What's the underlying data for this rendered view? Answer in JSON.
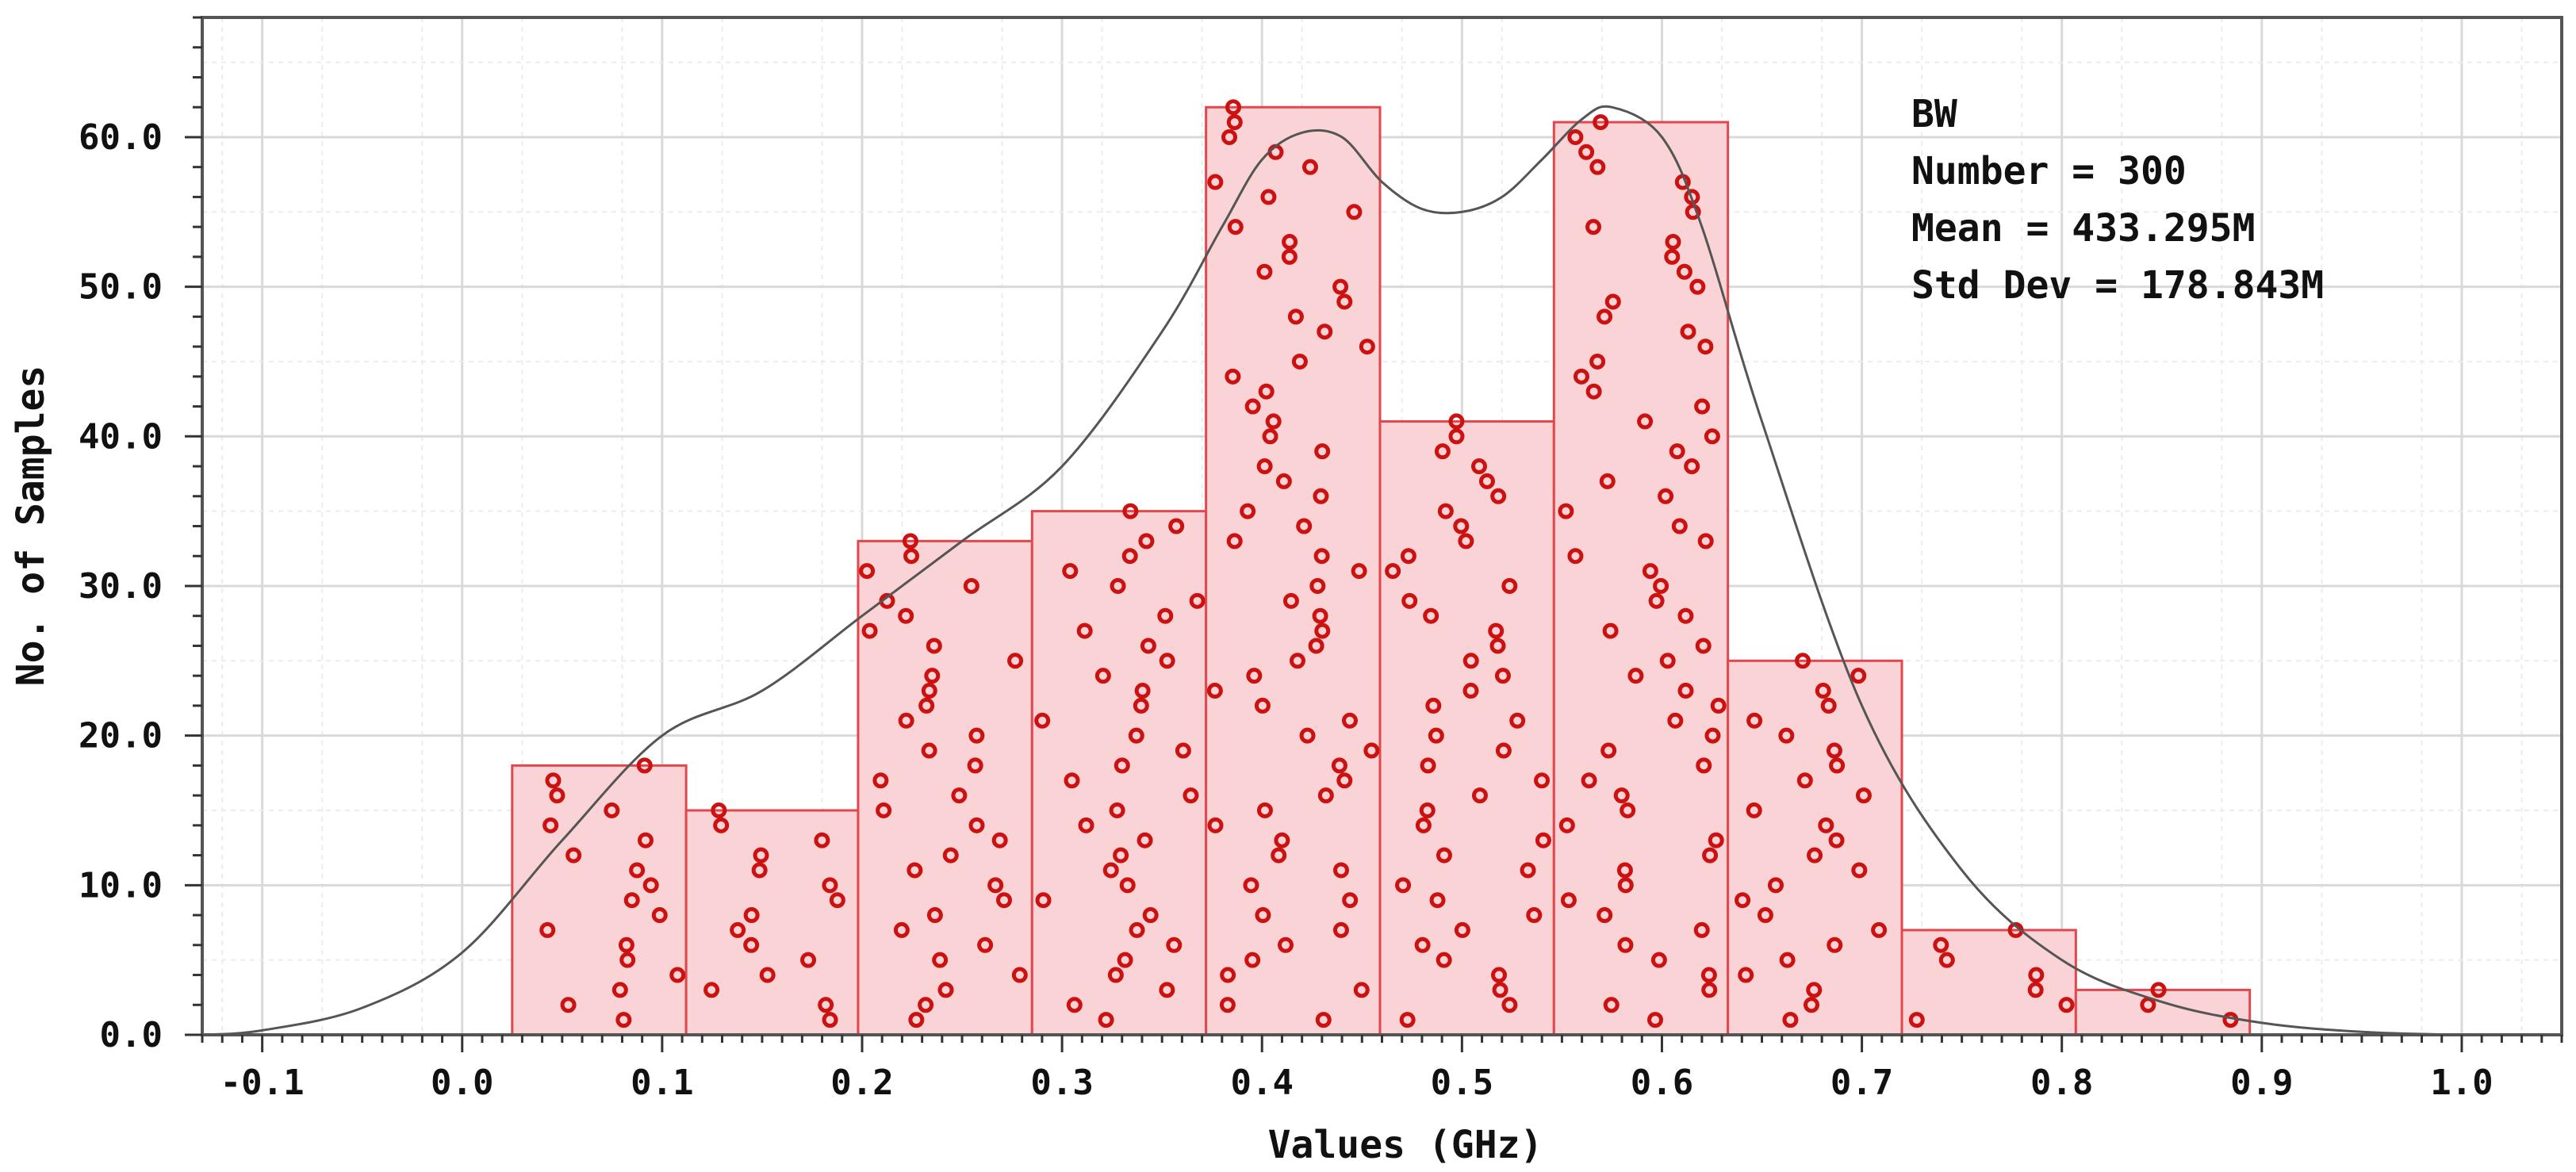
{
  "chart_data": {
    "type": "bar",
    "subtype": "histogram",
    "title": "",
    "xlabel": "Values (GHz)",
    "ylabel": "No. of Samples",
    "xlim": [
      -0.13,
      1.05
    ],
    "ylim": [
      0,
      68
    ],
    "grid": true,
    "x_ticks": [
      -0.1,
      0.0,
      0.1,
      0.2,
      0.3,
      0.4,
      0.5,
      0.6,
      0.7,
      0.8,
      0.9,
      1.0
    ],
    "x_tick_labels": [
      "-0.1",
      "0.0",
      "0.1",
      "0.2",
      "0.3",
      "0.4",
      "0.5",
      "0.6",
      "0.7",
      "0.8",
      "0.9",
      "1.0"
    ],
    "y_ticks": [
      0,
      10,
      20,
      30,
      40,
      50,
      60
    ],
    "y_tick_labels": [
      "0.0",
      "10.0",
      "20.0",
      "30.0",
      "40.0",
      "50.0",
      "60.0"
    ],
    "bins": [
      {
        "x0": 0.025,
        "x1": 0.112,
        "count": 18
      },
      {
        "x0": 0.112,
        "x1": 0.198,
        "count": 15
      },
      {
        "x0": 0.198,
        "x1": 0.285,
        "count": 33
      },
      {
        "x0": 0.285,
        "x1": 0.372,
        "count": 35
      },
      {
        "x0": 0.372,
        "x1": 0.459,
        "count": 62
      },
      {
        "x0": 0.459,
        "x1": 0.546,
        "count": 41
      },
      {
        "x0": 0.546,
        "x1": 0.633,
        "count": 61
      },
      {
        "x0": 0.633,
        "x1": 0.72,
        "count": 25
      },
      {
        "x0": 0.72,
        "x1": 0.807,
        "count": 7
      },
      {
        "x0": 0.807,
        "x1": 0.894,
        "count": 3
      }
    ],
    "density_curve": {
      "x": [
        -0.13,
        -0.1,
        -0.05,
        0.0,
        0.05,
        0.1,
        0.15,
        0.2,
        0.25,
        0.3,
        0.35,
        0.38,
        0.4,
        0.42,
        0.44,
        0.46,
        0.48,
        0.5,
        0.52,
        0.54,
        0.56,
        0.575,
        0.6,
        0.62,
        0.65,
        0.7,
        0.75,
        0.8,
        0.85,
        0.9,
        0.95,
        1.0,
        1.05
      ],
      "y": [
        0,
        0.3,
        1.8,
        5.5,
        13,
        20,
        23,
        28,
        33,
        38,
        47,
        54,
        58.5,
        60.3,
        60,
        57,
        55.2,
        55,
        56,
        58.5,
        61.2,
        62,
        60,
        54,
        41,
        22,
        11,
        5,
        2.2,
        0.8,
        0.2,
        0,
        0
      ]
    },
    "stats": {
      "label": "BW",
      "lines": [
        "Number = 300",
        "Mean = 433.295M",
        "Std Dev = 178.843M"
      ]
    },
    "colors": {
      "bar_fill": "#f9d3d5",
      "bar_stroke": "#e2474d",
      "marker": "#cc1111",
      "curve": "#555555",
      "grid": "#d9d9d9",
      "frame": "#555555"
    },
    "marker_count": 300
  }
}
